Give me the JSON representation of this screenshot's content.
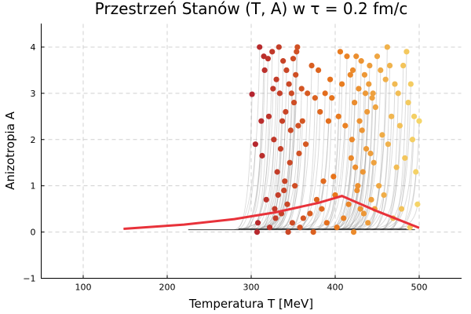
{
  "chart_data": {
    "type": "scatter",
    "title": "Przestrzeń Stanów (T, A) w τ = 0.2 fm/c",
    "xlabel": "Temperatura T [MeV]",
    "ylabel": "Anizotropia A",
    "xlim": [
      50,
      550
    ],
    "ylim": [
      -1,
      4.5
    ],
    "x_ticks": [
      100,
      200,
      300,
      400,
      500
    ],
    "y_ticks": [
      -1,
      0,
      1,
      2,
      3,
      4
    ],
    "grid": true,
    "legend": "none",
    "colors": {
      "low_T": "#b3232f",
      "mid_T": "#e8761b",
      "high_T": "#f5d66a",
      "boundary": "#e8323a",
      "trajectories": "#808080"
    },
    "boundary_curve": {
      "x": [
        148,
        220,
        280,
        330,
        380,
        408,
        450,
        500
      ],
      "y": [
        0.07,
        0.16,
        0.28,
        0.43,
        0.63,
        0.78,
        0.45,
        0.09
      ]
    },
    "baseline": {
      "x": [
        225,
        495
      ],
      "y": [
        0.05,
        0.05
      ]
    },
    "points": [
      {
        "x": 301,
        "y": 2.98
      },
      {
        "x": 305,
        "y": 1.9
      },
      {
        "x": 308,
        "y": 0.2
      },
      {
        "x": 307,
        "y": 0.0
      },
      {
        "x": 310,
        "y": 4.0
      },
      {
        "x": 312,
        "y": 2.4
      },
      {
        "x": 313,
        "y": 1.65
      },
      {
        "x": 315,
        "y": 3.8
      },
      {
        "x": 316,
        "y": 3.5
      },
      {
        "x": 318,
        "y": 0.7
      },
      {
        "x": 320,
        "y": 3.75
      },
      {
        "x": 321,
        "y": 2.5
      },
      {
        "x": 322,
        "y": 0.1
      },
      {
        "x": 325,
        "y": 3.9
      },
      {
        "x": 326,
        "y": 3.1
      },
      {
        "x": 327,
        "y": 2.0
      },
      {
        "x": 328,
        "y": 0.5
      },
      {
        "x": 329,
        "y": 0.3
      },
      {
        "x": 330,
        "y": 3.3
      },
      {
        "x": 331,
        "y": 1.3
      },
      {
        "x": 332,
        "y": 0.8
      },
      {
        "x": 333,
        "y": 4.0
      },
      {
        "x": 334,
        "y": 3.0
      },
      {
        "x": 335,
        "y": 1.8
      },
      {
        "x": 336,
        "y": 0.4
      },
      {
        "x": 337,
        "y": 2.4
      },
      {
        "x": 338,
        "y": 3.7
      },
      {
        "x": 339,
        "y": 0.9
      },
      {
        "x": 340,
        "y": 1.1
      },
      {
        "x": 341,
        "y": 2.6
      },
      {
        "x": 342,
        "y": 3.5
      },
      {
        "x": 343,
        "y": 0.6
      },
      {
        "x": 344,
        "y": 0.0
      },
      {
        "x": 345,
        "y": 3.2
      },
      {
        "x": 346,
        "y": 1.5
      },
      {
        "x": 347,
        "y": 2.2
      },
      {
        "x": 348,
        "y": 3.0
      },
      {
        "x": 349,
        "y": 0.2
      },
      {
        "x": 350,
        "y": 3.75
      },
      {
        "x": 351,
        "y": 2.8
      },
      {
        "x": 352,
        "y": 1.0
      },
      {
        "x": 353,
        "y": 3.4
      },
      {
        "x": 354,
        "y": 3.9
      },
      {
        "x": 355,
        "y": 4.0
      },
      {
        "x": 356,
        "y": 2.3
      },
      {
        "x": 357,
        "y": 1.7
      },
      {
        "x": 358,
        "y": 0.1
      },
      {
        "x": 360,
        "y": 3.1
      },
      {
        "x": 361,
        "y": 2.4
      },
      {
        "x": 362,
        "y": 0.3
      },
      {
        "x": 365,
        "y": 1.9
      },
      {
        "x": 367,
        "y": 3.0
      },
      {
        "x": 370,
        "y": 0.4
      },
      {
        "x": 372,
        "y": 3.6
      },
      {
        "x": 374,
        "y": 0.0
      },
      {
        "x": 376,
        "y": 2.9
      },
      {
        "x": 378,
        "y": 0.7
      },
      {
        "x": 380,
        "y": 3.5
      },
      {
        "x": 382,
        "y": 2.6
      },
      {
        "x": 384,
        "y": 0.5
      },
      {
        "x": 386,
        "y": 1.1
      },
      {
        "x": 388,
        "y": 3.0
      },
      {
        "x": 390,
        "y": 0.2
      },
      {
        "x": 392,
        "y": 2.4
      },
      {
        "x": 394,
        "y": 3.3
      },
      {
        "x": 396,
        "y": 2.9
      },
      {
        "x": 398,
        "y": 1.2
      },
      {
        "x": 400,
        "y": 0.8
      },
      {
        "x": 402,
        "y": 0.1
      },
      {
        "x": 404,
        "y": 2.5
      },
      {
        "x": 406,
        "y": 3.9
      },
      {
        "x": 408,
        "y": 3.2
      },
      {
        "x": 410,
        "y": 0.3
      },
      {
        "x": 412,
        "y": 2.3
      },
      {
        "x": 414,
        "y": 3.8
      },
      {
        "x": 416,
        "y": 0.6
      },
      {
        "x": 418,
        "y": 3.4
      },
      {
        "x": 419,
        "y": 1.6
      },
      {
        "x": 420,
        "y": 2.0
      },
      {
        "x": 421,
        "y": 3.5
      },
      {
        "x": 422,
        "y": 0.0
      },
      {
        "x": 423,
        "y": 2.8
      },
      {
        "x": 424,
        "y": 1.4
      },
      {
        "x": 425,
        "y": 3.8
      },
      {
        "x": 426,
        "y": 0.9
      },
      {
        "x": 427,
        "y": 1.0
      },
      {
        "x": 428,
        "y": 3.1
      },
      {
        "x": 429,
        "y": 2.4
      },
      {
        "x": 430,
        "y": 0.5
      },
      {
        "x": 431,
        "y": 3.7
      },
      {
        "x": 432,
        "y": 2.2
      },
      {
        "x": 433,
        "y": 1.3
      },
      {
        "x": 434,
        "y": 0.4
      },
      {
        "x": 435,
        "y": 3.4
      },
      {
        "x": 436,
        "y": 3.0
      },
      {
        "x": 437,
        "y": 1.8
      },
      {
        "x": 438,
        "y": 2.6
      },
      {
        "x": 439,
        "y": 0.2
      },
      {
        "x": 440,
        "y": 3.2
      },
      {
        "x": 441,
        "y": 3.6
      },
      {
        "x": 442,
        "y": 1.7
      },
      {
        "x": 443,
        "y": 0.7
      },
      {
        "x": 444,
        "y": 2.9
      },
      {
        "x": 445,
        "y": 3.0
      },
      {
        "x": 446,
        "y": 1.5
      },
      {
        "x": 447,
        "y": 0.5
      },
      {
        "x": 448,
        "y": 2.7
      },
      {
        "x": 450,
        "y": 3.8
      },
      {
        "x": 452,
        "y": 1.0
      },
      {
        "x": 454,
        "y": 3.5
      },
      {
        "x": 456,
        "y": 2.1
      },
      {
        "x": 458,
        "y": 0.8
      },
      {
        "x": 460,
        "y": 3.3
      },
      {
        "x": 462,
        "y": 4.0
      },
      {
        "x": 463,
        "y": 1.9
      },
      {
        "x": 465,
        "y": 3.6
      },
      {
        "x": 467,
        "y": 2.5
      },
      {
        "x": 469,
        "y": 0.3
      },
      {
        "x": 471,
        "y": 3.2
      },
      {
        "x": 473,
        "y": 1.4
      },
      {
        "x": 475,
        "y": 3.0
      },
      {
        "x": 477,
        "y": 2.3
      },
      {
        "x": 479,
        "y": 0.5
      },
      {
        "x": 481,
        "y": 3.6
      },
      {
        "x": 483,
        "y": 1.6
      },
      {
        "x": 485,
        "y": 3.9
      },
      {
        "x": 487,
        "y": 2.8
      },
      {
        "x": 489,
        "y": 0.1
      },
      {
        "x": 490,
        "y": 3.2
      },
      {
        "x": 492,
        "y": 2.0
      },
      {
        "x": 494,
        "y": 2.5
      },
      {
        "x": 496,
        "y": 1.3
      },
      {
        "x": 498,
        "y": 0.6
      },
      {
        "x": 500,
        "y": 2.4
      }
    ]
  }
}
